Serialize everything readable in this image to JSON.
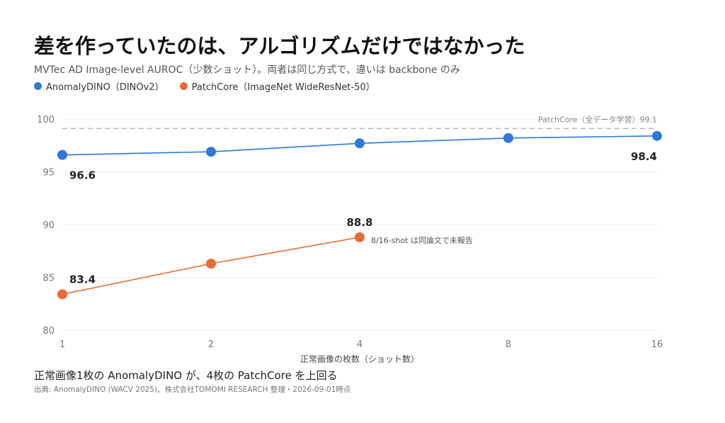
{
  "title": "差を作っていたのは、アルゴリズムだけではなかった",
  "subtitle": "MVTec AD Image-level AUROC（少数ショット）。両者は同じ方式で、違いは backbone のみ",
  "colors": {
    "anomalydino": "#2f78d6",
    "patchcore": "#ea6a36",
    "reference": "#b5b5b5",
    "grid": "#eeeeee"
  },
  "chart_data": {
    "type": "line",
    "x": [
      1,
      2,
      4,
      8,
      16
    ],
    "x_tick_labels": [
      "1",
      "2",
      "4",
      "8",
      "16"
    ],
    "x_scale": "log2",
    "xlabel": "正常画像の枚数（ショット数）",
    "ylabel": "",
    "ylim": [
      80,
      100
    ],
    "y_ticks": [
      80,
      85,
      90,
      95,
      100
    ],
    "grid": true,
    "legend_position": "top-left",
    "series": [
      {
        "name": "AnomalyDINO（DINOv2）",
        "color": "#2f78d6",
        "values": [
          96.6,
          96.9,
          97.7,
          98.2,
          98.4
        ],
        "labels": [
          {
            "x": 1,
            "text": "96.6"
          },
          {
            "x": 16,
            "text": "98.4"
          }
        ]
      },
      {
        "name": "PatchCore（ImageNet WideResNet-50）",
        "color": "#ea6a36",
        "values": [
          83.4,
          86.3,
          88.8,
          null,
          null
        ],
        "labels": [
          {
            "x": 1,
            "text": "83.4"
          },
          {
            "x": 4,
            "text": "88.8"
          }
        ]
      }
    ],
    "reference_line": {
      "value": 99.1,
      "label": "PatchCore（全データ学習）99.1"
    },
    "annotations": [
      {
        "x": 4,
        "y": 88.8,
        "text": "8/16-shot は同論文で未報告"
      }
    ]
  },
  "takeaway": "正常画像1枚の AnomalyDINO が、4枚の PatchCore を上回る",
  "source": "出典: AnomalyDINO (WACV 2025)。株式会社TOMOMI RESEARCH 整理・2026-09-01時点"
}
